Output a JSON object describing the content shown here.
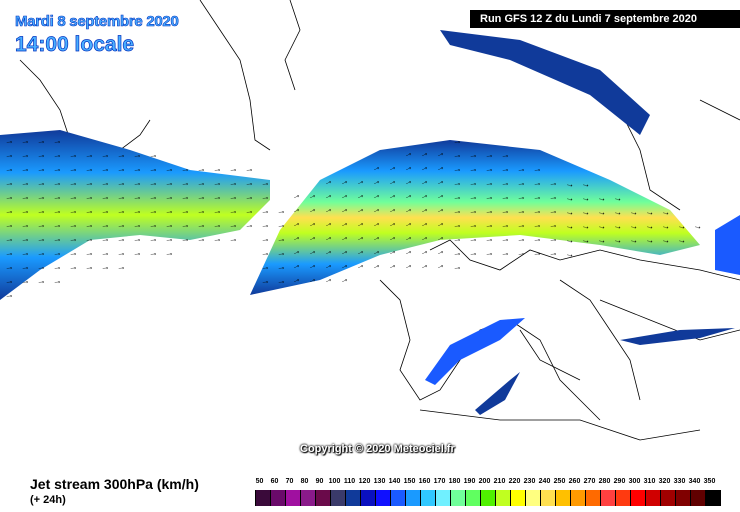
{
  "header": {
    "date": "Mardi 8 septembre 2020",
    "time": "14:00 locale",
    "run": "Run GFS 12 Z du Lundi 7 septembre 2020"
  },
  "copyright": "Copyright © 2020 Meteociel.fr",
  "footer": {
    "title": "Jet stream 300hPa (km/h)",
    "subtitle": "(+ 24h)"
  },
  "legend": {
    "labels": [
      "50",
      "60",
      "70",
      "80",
      "90",
      "100",
      "110",
      "120",
      "130",
      "140",
      "150",
      "160",
      "170",
      "180",
      "190",
      "200",
      "210",
      "220",
      "230",
      "240",
      "250",
      "260",
      "270",
      "280",
      "290",
      "300",
      "310",
      "320",
      "330",
      "340",
      "350"
    ],
    "colors": [
      "#3a0a3a",
      "#6a0a6a",
      "#a010a0",
      "#8a1a8a",
      "#6a0a4a",
      "#3a3a6a",
      "#103a9a",
      "#0a10c0",
      "#1010ff",
      "#1a5aff",
      "#1a9aff",
      "#30c8ff",
      "#70f0ff",
      "#70ff9a",
      "#60ff60",
      "#50f000",
      "#c0ff20",
      "#ffff00",
      "#ffff80",
      "#ffe050",
      "#ffc000",
      "#ff9a00",
      "#ff6a00",
      "#ff4040",
      "#ff3a10",
      "#ff0000",
      "#d00000",
      "#a00000",
      "#800000",
      "#600000",
      "#000000"
    ]
  },
  "map": {
    "variable": "wind speed 300hPa",
    "region": "North Atlantic / Europe",
    "wind_arrow_icon": "arrow-icon"
  }
}
